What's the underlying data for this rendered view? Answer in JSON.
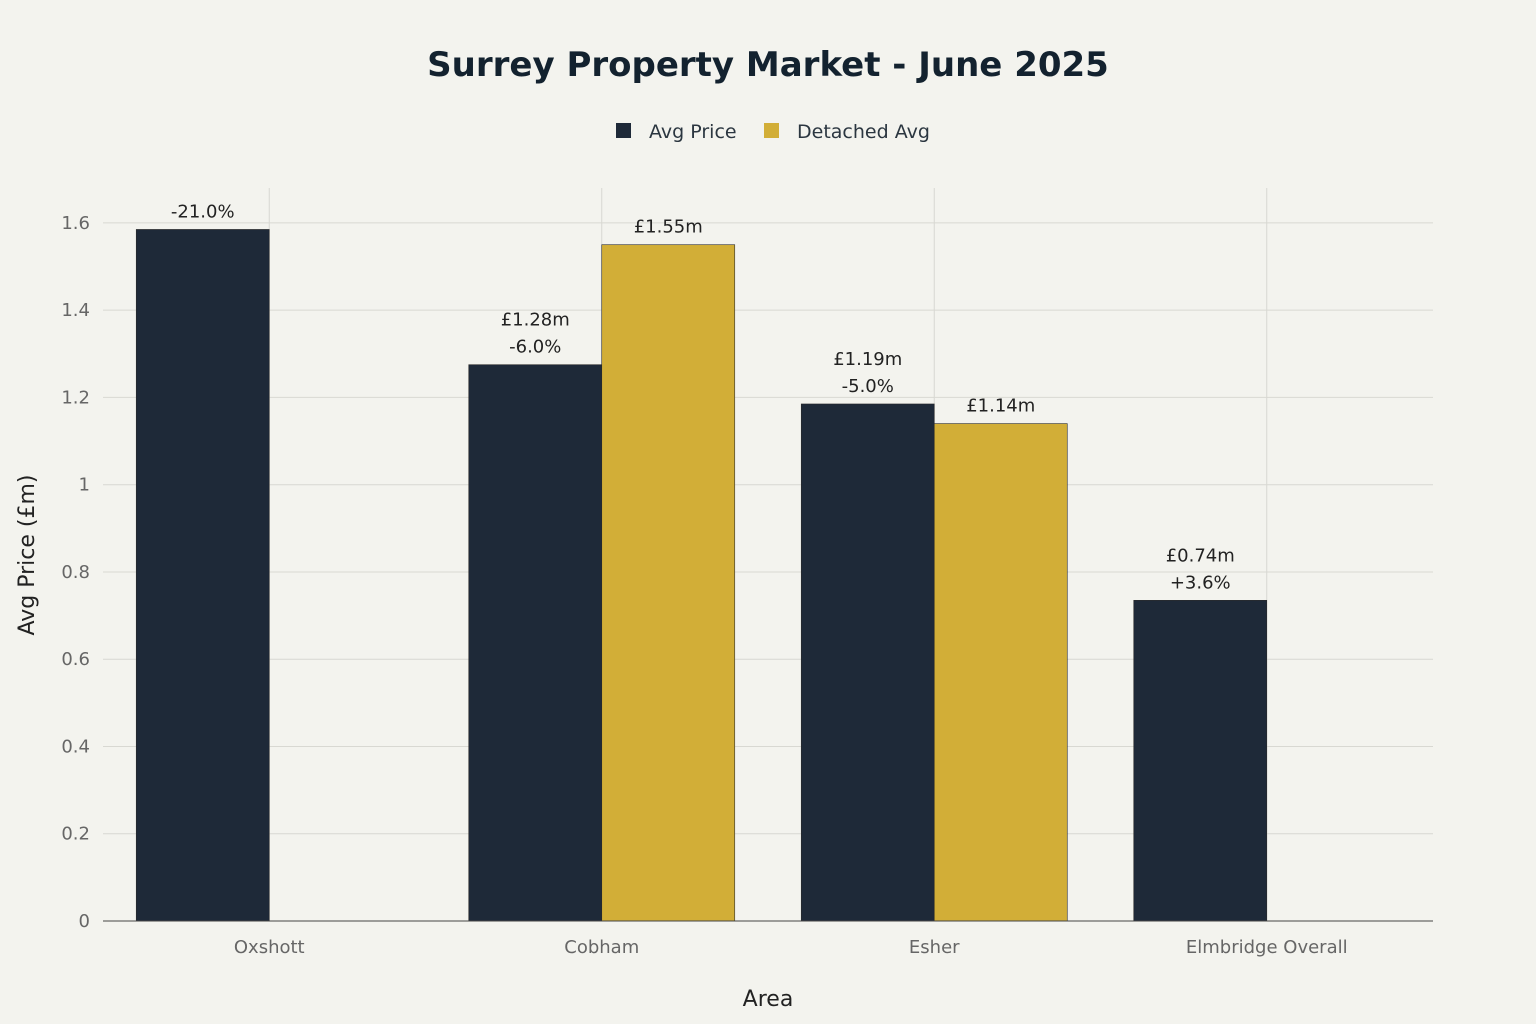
{
  "chart_data": {
    "type": "bar",
    "title": "Surrey Property Market - June 2025",
    "xlabel": "Area",
    "ylabel": "Avg Price (£m)",
    "categories": [
      "Oxshott",
      "Cobham",
      "Esher",
      "Elmbridge Overall"
    ],
    "ylim": [
      0,
      1.68
    ],
    "yticks": [
      "0",
      "0.2",
      "0.4",
      "0.6",
      "0.8",
      "1",
      "1.2",
      "1.4",
      "1.6"
    ],
    "ytick_values": [
      0,
      0.2,
      0.4,
      0.6,
      0.8,
      1,
      1.2,
      1.4,
      1.6
    ],
    "grid": true,
    "legend_position": "top-center",
    "series": [
      {
        "name": "Avg Price",
        "color": "#1e2938",
        "values": [
          1.585,
          1.275,
          1.185,
          0.735
        ],
        "labels": [
          [
            "-21.0%"
          ],
          [
            "£1.28m",
            "-6.0%"
          ],
          [
            "£1.19m",
            "-5.0%"
          ],
          [
            "£0.74m",
            "+3.6%"
          ]
        ]
      },
      {
        "name": "Detached Avg",
        "color": "#d2ae37",
        "values": [
          null,
          1.55,
          1.14,
          null
        ],
        "labels": [
          [],
          [
            "£1.55m"
          ],
          [
            "£1.14m"
          ],
          []
        ]
      }
    ]
  }
}
